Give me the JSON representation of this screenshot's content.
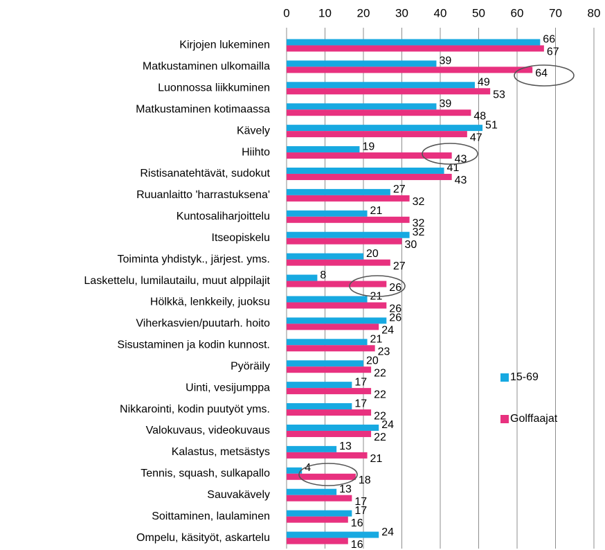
{
  "chart_data": {
    "type": "bar",
    "orientation": "horizontal",
    "categories": [
      "Kirjojen lukeminen",
      "Matkustaminen ulkomailla",
      "Luonnossa liikkuminen",
      "Matkustaminen kotimaassa",
      "Kävely",
      "Hiihto",
      "Ristisanatehtävät, sudokut",
      "Ruuanlaitto 'harrastuksena'",
      "Kuntosaliharjoittelu",
      "Itseopiskelu",
      "Toiminta yhdistyk., järjest. yms.",
      "Laskettelu, lumilautailu, muut alppilajit",
      "Hölkkä, lenkkeily, juoksu",
      "Viherkasvien/puutarh. hoito",
      "Sisustaminen ja kodin kunnost.",
      "Pyöräily",
      "Uinti, vesijumppa",
      "Nikkarointi, kodin puutyöt yms.",
      "Valokuvaus, videokuvaus",
      "Kalastus, metsästys",
      "Tennis, squash, sulkapallo",
      "Sauvakävely",
      "Soittaminen, laulaminen",
      "Ompelu, käsityöt, askartelu"
    ],
    "series": [
      {
        "name": "15-69",
        "color": "#17a9e1",
        "values": [
          66,
          39,
          49,
          39,
          51,
          19,
          41,
          27,
          21,
          32,
          20,
          8,
          21,
          26,
          21,
          20,
          17,
          17,
          24,
          13,
          4,
          13,
          17,
          24
        ]
      },
      {
        "name": "Golffaajat",
        "color": "#e8317f",
        "values": [
          67,
          64,
          53,
          48,
          47,
          43,
          43,
          32,
          32,
          30,
          27,
          26,
          26,
          24,
          23,
          22,
          22,
          22,
          22,
          21,
          18,
          17,
          16,
          16
        ]
      }
    ],
    "xlim": [
      0,
      80
    ],
    "xticks": [
      0,
      10,
      20,
      30,
      40,
      50,
      60,
      70,
      80
    ],
    "grid": true,
    "legend": "right"
  }
}
